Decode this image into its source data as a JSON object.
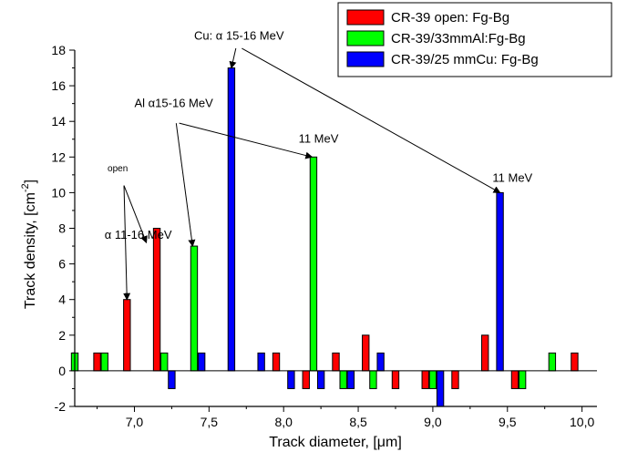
{
  "chart_data": {
    "type": "bar",
    "xlabel_prefix": "Track diameter, [",
    "xlabel_mu": "μ",
    "xlabel_suffix": "m]",
    "ylabel_prefix": "Track density, [cm",
    "ylabel_exp": "-2",
    "ylabel_suffix": "]",
    "xlim": [
      6.6,
      10.1
    ],
    "ylim": [
      -2,
      18
    ],
    "x_ticks": [
      7.0,
      7.5,
      8.0,
      8.5,
      9.0,
      9.5,
      10.0
    ],
    "x_tick_labels": [
      "7,0",
      "7,5",
      "8,0",
      "8,5",
      "9,0",
      "9,5",
      "10,0"
    ],
    "y_ticks": [
      -2,
      0,
      2,
      4,
      6,
      8,
      10,
      12,
      14,
      16,
      18
    ],
    "y_tick_labels": [
      "-2",
      "0",
      "2",
      "4",
      "6",
      "8",
      "10",
      "12",
      "14",
      "16",
      "18"
    ],
    "bar_width": 0.045,
    "series": [
      {
        "name": "CR-39 open: Fg-Bg",
        "color": "#ff0000",
        "points": [
          {
            "x": 6.75,
            "y": 1
          },
          {
            "x": 6.95,
            "y": 4
          },
          {
            "x": 7.15,
            "y": 8
          },
          {
            "x": 7.95,
            "y": 1
          },
          {
            "x": 8.15,
            "y": -1
          },
          {
            "x": 8.35,
            "y": 1
          },
          {
            "x": 8.55,
            "y": 2
          },
          {
            "x": 8.75,
            "y": -1
          },
          {
            "x": 8.95,
            "y": -1
          },
          {
            "x": 9.15,
            "y": -1
          },
          {
            "x": 9.35,
            "y": 2
          },
          {
            "x": 9.55,
            "y": -1
          },
          {
            "x": 9.95,
            "y": 1
          }
        ]
      },
      {
        "name": "CR-39/33mmAl:Fg-Bg",
        "color": "#00ff00",
        "points": [
          {
            "x": 6.6,
            "y": 1
          },
          {
            "x": 6.8,
            "y": 1
          },
          {
            "x": 7.2,
            "y": 1
          },
          {
            "x": 7.4,
            "y": 7
          },
          {
            "x": 8.2,
            "y": 12
          },
          {
            "x": 8.4,
            "y": -1
          },
          {
            "x": 8.6,
            "y": -1
          },
          {
            "x": 9.0,
            "y": -1
          },
          {
            "x": 9.6,
            "y": -1
          },
          {
            "x": 9.8,
            "y": 1
          }
        ]
      },
      {
        "name": "CR-39/25 mmCu: Fg-Bg",
        "color": "#0000ff",
        "points": [
          {
            "x": 7.25,
            "y": -1
          },
          {
            "x": 7.45,
            "y": 1
          },
          {
            "x": 7.65,
            "y": 17
          },
          {
            "x": 7.85,
            "y": 1
          },
          {
            "x": 8.05,
            "y": -1
          },
          {
            "x": 8.25,
            "y": -1
          },
          {
            "x": 8.45,
            "y": -1
          },
          {
            "x": 8.65,
            "y": 1
          },
          {
            "x": 9.05,
            "y": -2
          },
          {
            "x": 9.45,
            "y": 10
          }
        ]
      }
    ],
    "legend_position": "top-right",
    "annotations": [
      {
        "id": "cu",
        "text_prefix": "Cu: ",
        "text_alpha": "α",
        "text_suffix": " 15-16 MeV",
        "x": 7.4,
        "y": 18.6,
        "size": "normal",
        "arrows": [
          {
            "from": [
              7.68,
              18.1
            ],
            "to": [
              7.65,
              17.0
            ]
          },
          {
            "from": [
              7.72,
              18.1
            ],
            "to": [
              9.45,
              10.0
            ]
          }
        ]
      },
      {
        "id": "al",
        "text_prefix": "Al ",
        "text_alpha": "α",
        "text_suffix": "15-16 MeV",
        "x": 7.0,
        "y": 14.8,
        "size": "normal",
        "arrows": [
          {
            "from": [
              7.28,
              13.9
            ],
            "to": [
              7.39,
              7.0
            ]
          },
          {
            "from": [
              7.3,
              13.9
            ],
            "to": [
              8.19,
              12.0
            ]
          }
        ]
      },
      {
        "id": "al11",
        "text_prefix": "11 MeV",
        "text_alpha": "",
        "text_suffix": "",
        "x": 8.1,
        "y": 12.8,
        "size": "normal",
        "arrows": []
      },
      {
        "id": "cu11",
        "text_prefix": "11 MeV",
        "text_alpha": "",
        "text_suffix": "",
        "x": 9.4,
        "y": 10.6,
        "size": "normal",
        "arrows": []
      },
      {
        "id": "open",
        "text_prefix": "open",
        "text_alpha": "",
        "text_suffix": "",
        "x": 6.82,
        "y": 11.2,
        "size": "small",
        "arrows": [
          {
            "from": [
              6.93,
              10.4
            ],
            "to": [
              7.08,
              7.2
            ]
          },
          {
            "from": [
              6.93,
              10.4
            ],
            "to": [
              6.95,
              4.0
            ]
          }
        ]
      },
      {
        "id": "open-range",
        "text_prefix": "α",
        "text_alpha": "",
        "text_suffix": " 11-16 MeV",
        "x": 6.8,
        "y": 7.4,
        "size": "normal",
        "arrows": []
      }
    ]
  }
}
